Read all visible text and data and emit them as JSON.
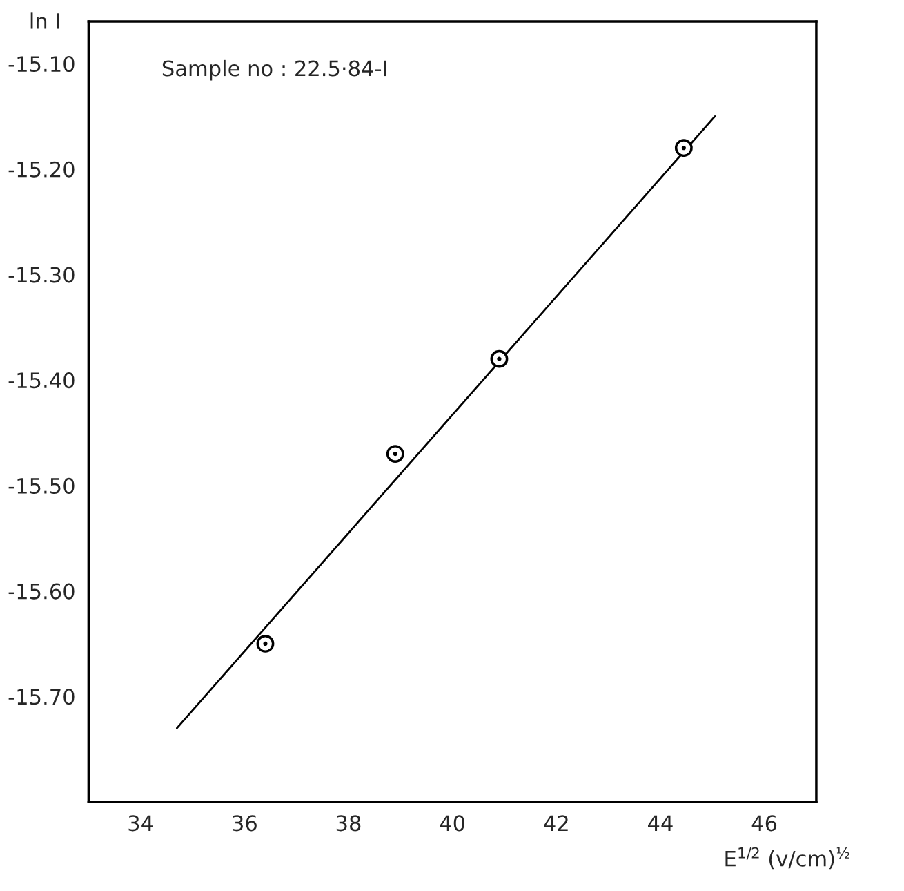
{
  "chart_data": {
    "type": "line",
    "xlabel": "E$^{1/2}$ (v/cm)$^{½}$",
    "ylabel": "ln I",
    "annotations": [
      "Sample no : 22.5·84-I"
    ],
    "xlim": [
      33,
      47
    ],
    "ylim": [
      -15.8,
      -15.06
    ],
    "xticks": [
      34,
      36,
      38,
      40,
      42,
      44,
      46
    ],
    "yticks": [
      {
        "value": -15.1,
        "label": "-15.10"
      },
      {
        "value": -15.2,
        "label": "-15.20"
      },
      {
        "value": -15.3,
        "label": "-15.30"
      },
      {
        "value": -15.4,
        "label": "-15.40"
      },
      {
        "value": -15.5,
        "label": "-15.50"
      },
      {
        "value": -15.6,
        "label": "-15.60"
      },
      {
        "value": -15.7,
        "label": "-15.70"
      }
    ],
    "grid": false,
    "series": [
      {
        "type": "scatter",
        "marker": "circle",
        "color": "#000000",
        "x": [
          36.4,
          38.9,
          40.9,
          44.45
        ],
        "values": [
          -15.65,
          -15.47,
          -15.38,
          -15.18
        ]
      },
      {
        "color": "#000000",
        "x": [
          34.7,
          45.05
        ],
        "values": [
          -15.73,
          -15.15
        ]
      }
    ]
  }
}
